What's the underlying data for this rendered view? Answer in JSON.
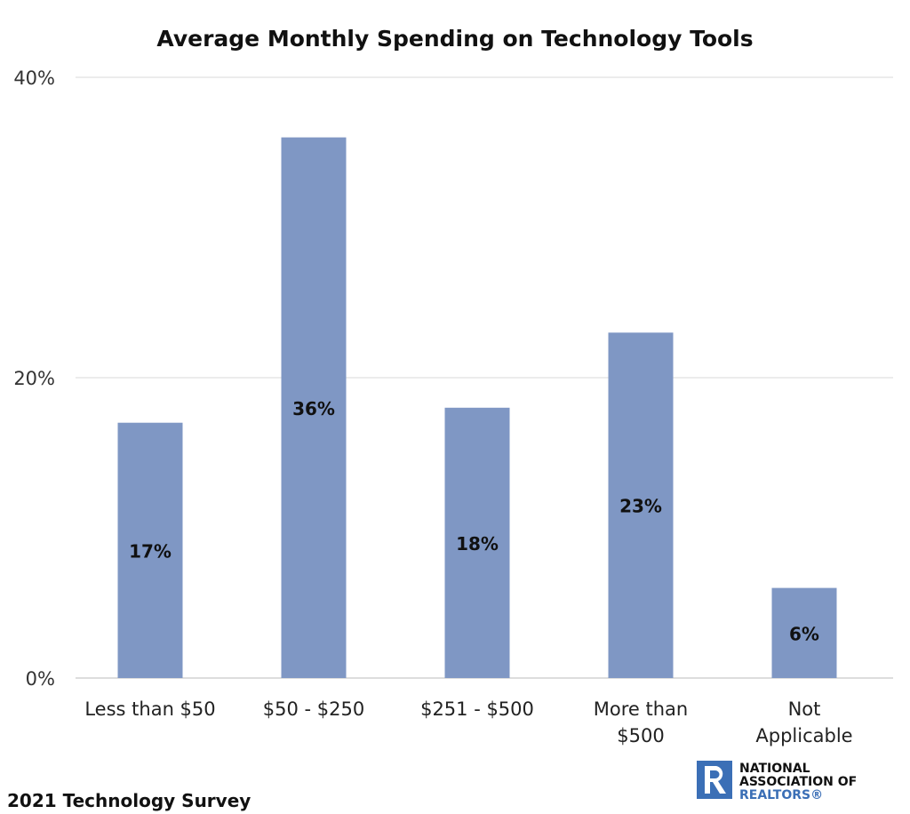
{
  "chart_data": {
    "type": "bar",
    "title": "Average Monthly Spending on Technology Tools",
    "categories": [
      [
        "Less than $50"
      ],
      [
        "$50 - $250"
      ],
      [
        "$251 - $500"
      ],
      [
        "More than",
        "$500"
      ],
      [
        "Not",
        "Applicable"
      ]
    ],
    "values": [
      17,
      36,
      18,
      23,
      6
    ],
    "data_labels": [
      "17%",
      "36%",
      "18%",
      "23%",
      "6%"
    ],
    "yticks": [
      "0%",
      "20%",
      "40%"
    ],
    "ytick_values": [
      0,
      20,
      40
    ],
    "ylim": [
      0,
      40
    ],
    "grid": true,
    "bar_color": "#7f97c4",
    "xlabel": "",
    "ylabel": ""
  },
  "footer": "2021 Technology Survey",
  "logo": {
    "line1": "NATIONAL",
    "line2": "ASSOCIATION OF",
    "line3": "REALTORS®",
    "color": "#3b6fb6"
  }
}
